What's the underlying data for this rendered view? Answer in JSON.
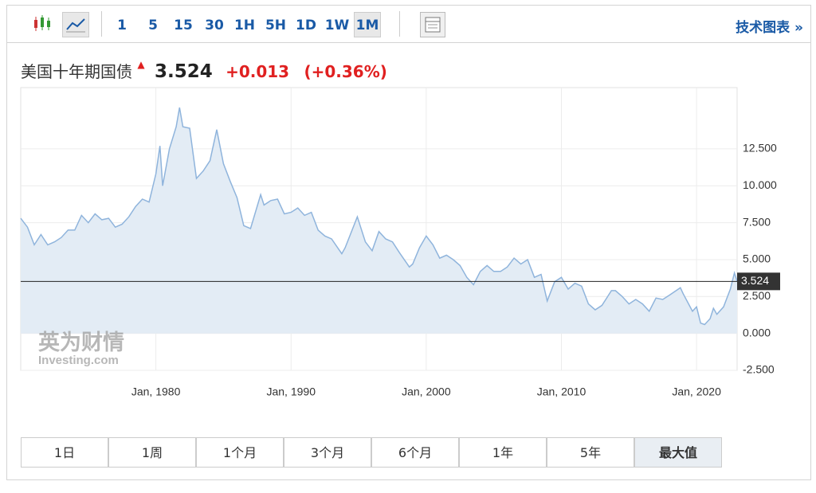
{
  "toolbar": {
    "intervals": [
      "1",
      "5",
      "15",
      "30",
      "1H",
      "5H",
      "1D",
      "1W",
      "1M"
    ],
    "active_interval": "1M",
    "link": "技术图表 »"
  },
  "header": {
    "title": "美国十年期国债",
    "price": "3.524",
    "change": "+0.013",
    "change_percent": "(+0.36%)"
  },
  "watermark": {
    "brand": "英为财情",
    "site": "Investing.com"
  },
  "chart_data": {
    "type": "area",
    "color": "#8fb4dc",
    "fill": "#e3ecf5",
    "grid": true,
    "reference_line": 3.524,
    "x": [
      1970.0,
      1970.5,
      1971.0,
      1971.5,
      1972.0,
      1972.5,
      1973.0,
      1973.5,
      1974.0,
      1974.5,
      1975.0,
      1975.5,
      1976.0,
      1976.5,
      1977.0,
      1977.5,
      1978.0,
      1978.5,
      1979.0,
      1979.5,
      1980.0,
      1980.3,
      1980.5,
      1981.0,
      1981.5,
      1981.75,
      1982.0,
      1982.5,
      1983.0,
      1983.5,
      1984.0,
      1984.5,
      1985.0,
      1985.5,
      1986.0,
      1986.5,
      1987.0,
      1987.75,
      1988.0,
      1988.5,
      1989.0,
      1989.5,
      1990.0,
      1990.5,
      1991.0,
      1991.5,
      1992.0,
      1992.5,
      1993.0,
      1993.75,
      1994.0,
      1994.9,
      1995.5,
      1996.0,
      1996.5,
      1997.0,
      1997.5,
      1998.0,
      1998.75,
      1999.0,
      1999.5,
      2000.0,
      2000.5,
      2001.0,
      2001.5,
      2002.0,
      2002.5,
      2003.0,
      2003.5,
      2004.0,
      2004.5,
      2005.0,
      2005.5,
      2006.0,
      2006.5,
      2007.0,
      2007.5,
      2008.0,
      2008.5,
      2008.95,
      2009.5,
      2010.0,
      2010.5,
      2011.0,
      2011.5,
      2012.0,
      2012.5,
      2013.0,
      2013.7,
      2014.0,
      2014.5,
      2015.0,
      2015.5,
      2016.0,
      2016.5,
      2017.0,
      2017.5,
      2018.0,
      2018.8,
      2019.0,
      2019.7,
      2020.0,
      2020.3,
      2020.6,
      2021.0,
      2021.25,
      2021.5,
      2022.0,
      2022.5,
      2022.8,
      2023.0
    ],
    "values": [
      7.8,
      7.2,
      6.0,
      6.7,
      6.0,
      6.2,
      6.5,
      7.0,
      7.0,
      8.0,
      7.5,
      8.1,
      7.7,
      7.8,
      7.2,
      7.4,
      7.9,
      8.6,
      9.1,
      8.9,
      10.8,
      12.7,
      10.0,
      12.5,
      14.0,
      15.3,
      14.0,
      13.9,
      10.5,
      11.0,
      11.7,
      13.8,
      11.5,
      10.3,
      9.2,
      7.3,
      7.1,
      9.4,
      8.7,
      9.0,
      9.1,
      8.1,
      8.2,
      8.5,
      8.0,
      8.2,
      7.0,
      6.6,
      6.4,
      5.4,
      5.8,
      7.9,
      6.2,
      5.6,
      6.9,
      6.4,
      6.2,
      5.5,
      4.5,
      4.7,
      5.8,
      6.6,
      6.0,
      5.1,
      5.3,
      5.0,
      4.6,
      3.8,
      3.3,
      4.2,
      4.6,
      4.2,
      4.2,
      4.5,
      5.1,
      4.7,
      5.0,
      3.8,
      4.0,
      2.2,
      3.5,
      3.8,
      3.0,
      3.4,
      3.2,
      2.0,
      1.6,
      1.9,
      2.9,
      2.9,
      2.5,
      2.0,
      2.3,
      2.0,
      1.5,
      2.4,
      2.3,
      2.6,
      3.1,
      2.7,
      1.5,
      1.8,
      0.7,
      0.6,
      1.0,
      1.7,
      1.3,
      1.8,
      3.0,
      4.1,
      3.524
    ],
    "xlim": [
      1970.0,
      2023.0
    ],
    "xticks": [
      {
        "value": 1980,
        "label": "Jan, 1980"
      },
      {
        "value": 1990,
        "label": "Jan, 1990"
      },
      {
        "value": 2000,
        "label": "Jan, 2000"
      },
      {
        "value": 2010,
        "label": "Jan, 2010"
      },
      {
        "value": 2020,
        "label": "Jan, 2020"
      }
    ],
    "ylim": [
      -2.5,
      16.65
    ],
    "yticks": [
      {
        "value": -2.5,
        "label": "-2.500"
      },
      {
        "value": 0,
        "label": "0.000"
      },
      {
        "value": 2.5,
        "label": "2.500"
      },
      {
        "value": 5,
        "label": "5.000"
      },
      {
        "value": 7.5,
        "label": "7.500"
      },
      {
        "value": 10,
        "label": "10.000"
      },
      {
        "value": 12.5,
        "label": "12.500"
      }
    ]
  },
  "ranges": {
    "items": [
      "1日",
      "1周",
      "1个月",
      "3个月",
      "6个月",
      "1年",
      "5年",
      "最大值"
    ],
    "active": "最大值"
  }
}
